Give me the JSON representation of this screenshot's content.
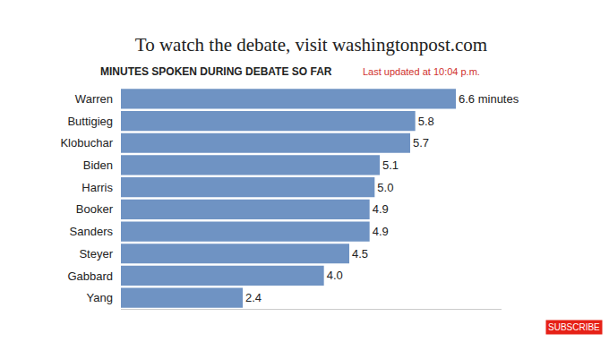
{
  "chart_data": {
    "type": "bar",
    "title": "To watch the debate, visit washingtonpost.com",
    "subtitle": "MINUTES SPOKEN DURING DEBATE SO FAR",
    "annotations": [
      "Last updated at 10:04 p.m.",
      "SUBSCRIBE"
    ],
    "categories": [
      "Warren",
      "Buttigieg",
      "Klobuchar",
      "Biden",
      "Harris",
      "Booker",
      "Sanders",
      "Steyer",
      "Gabbard",
      "Yang"
    ],
    "values": [
      6.6,
      5.8,
      5.7,
      5.1,
      5.0,
      4.9,
      4.9,
      4.5,
      4.0,
      2.4
    ],
    "value_labels": [
      "6.6 minutes",
      "5.8",
      "5.7",
      "5.1",
      "5.0",
      "4.9",
      "4.9",
      "4.5",
      "4.0",
      "2.4"
    ],
    "color": "#6f93c3",
    "orientation": "horizontal",
    "data_labels": true,
    "tick_labels": "y",
    "xlim": [
      0,
      7.5
    ],
    "xticks": [],
    "grid": false
  }
}
